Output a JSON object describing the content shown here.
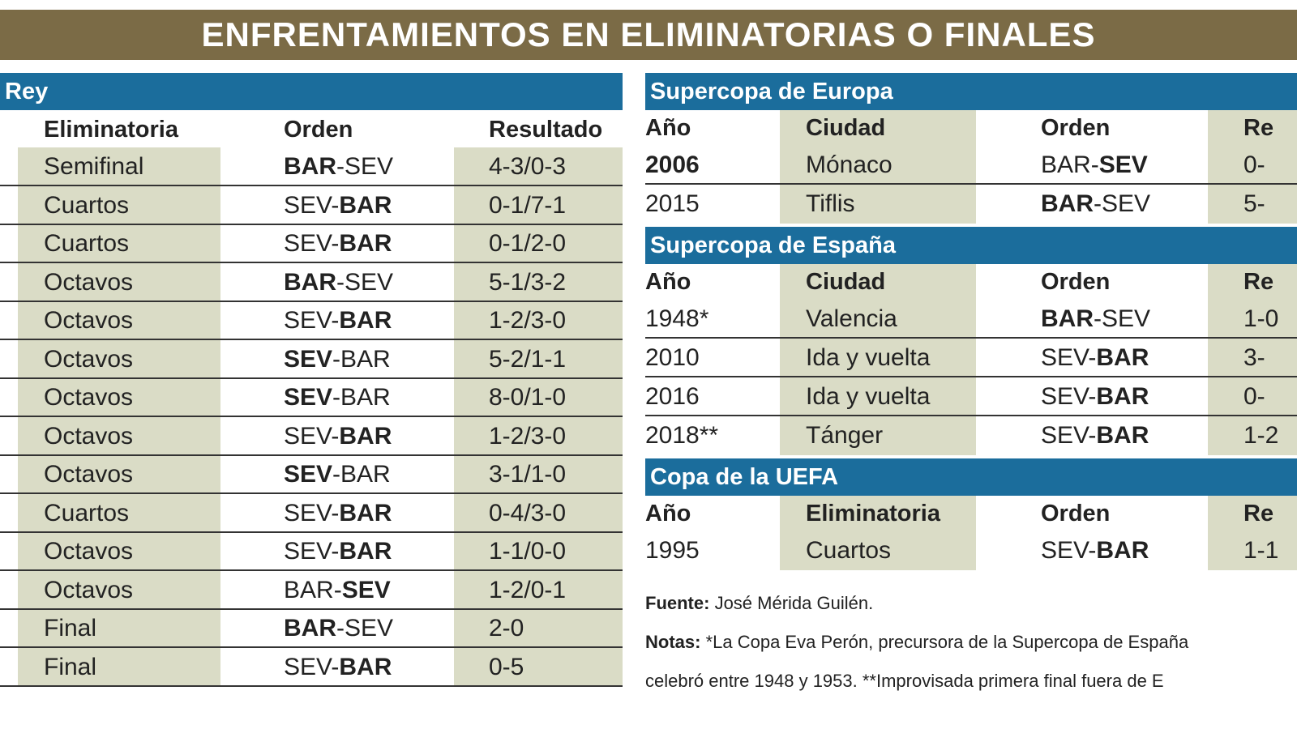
{
  "header": {
    "title": "ENFRENTAMIENTOS EN ELIMINATORIAS O FINALES"
  },
  "left": {
    "title": "Rey",
    "columns": [
      "Eliminatoria",
      "Orden",
      "Resultado"
    ],
    "rows": [
      {
        "cells": [
          "Semifinal",
          "BAR-SEV",
          "4-3/0-3"
        ],
        "orden_bold": 0
      },
      {
        "cells": [
          "Cuartos",
          "SEV-BAR",
          "0-1/7-1"
        ],
        "orden_bold": 1
      },
      {
        "cells": [
          "Cuartos",
          "SEV-BAR",
          "0-1/2-0"
        ],
        "orden_bold": 1
      },
      {
        "cells": [
          "Octavos",
          "BAR-SEV",
          "5-1/3-2"
        ],
        "orden_bold": 0
      },
      {
        "cells": [
          "Octavos",
          "SEV-BAR",
          "1-2/3-0"
        ],
        "orden_bold": 1
      },
      {
        "cells": [
          "Octavos",
          "SEV-BAR",
          "5-2/1-1"
        ],
        "orden_bold": 0
      },
      {
        "cells": [
          "Octavos",
          "SEV-BAR",
          "8-0/1-0"
        ],
        "orden_bold": 0
      },
      {
        "cells": [
          "Octavos",
          "SEV-BAR",
          "1-2/3-0"
        ],
        "orden_bold": 1
      },
      {
        "cells": [
          "Octavos",
          "SEV-BAR",
          "3-1/1-0"
        ],
        "orden_bold": 0
      },
      {
        "cells": [
          "Cuartos",
          "SEV-BAR",
          "0-4/3-0"
        ],
        "orden_bold": 1
      },
      {
        "cells": [
          "Octavos",
          "SEV-BAR",
          "1-1/0-0"
        ],
        "orden_bold": 1
      },
      {
        "cells": [
          "Octavos",
          "BAR-SEV",
          "1-2/0-1"
        ],
        "orden_bold": 1
      },
      {
        "cells": [
          "Final",
          "BAR-SEV",
          "2-0"
        ],
        "orden_bold": 0
      },
      {
        "cells": [
          "Final",
          "SEV-BAR",
          "0-5"
        ],
        "orden_bold": 1
      }
    ]
  },
  "right": {
    "sections": [
      {
        "title": "Supercopa de Europa",
        "columns": [
          "Año",
          "Ciudad",
          "Orden",
          "Re"
        ],
        "rows": [
          {
            "cells": [
              "2006",
              "Mónaco",
              "BAR-SEV",
              "0-"
            ],
            "orden_bold": 1,
            "year_bold": true
          },
          {
            "cells": [
              "2015",
              "Tiflis",
              "BAR-SEV",
              "5-"
            ],
            "orden_bold": 0
          }
        ]
      },
      {
        "title": "Supercopa de España",
        "columns": [
          "Año",
          "Ciudad",
          "Orden",
          "Re"
        ],
        "rows": [
          {
            "cells": [
              "1948*",
              "Valencia",
              "BAR-SEV",
              "1-0"
            ],
            "orden_bold": 0
          },
          {
            "cells": [
              "2010",
              "Ida y vuelta",
              "SEV-BAR",
              "3-"
            ],
            "orden_bold": 1
          },
          {
            "cells": [
              "2016",
              "Ida y vuelta",
              "SEV-BAR",
              "0-"
            ],
            "orden_bold": 1
          },
          {
            "cells": [
              "2018**",
              "Tánger",
              "SEV-BAR",
              "1-2"
            ],
            "orden_bold": 1
          }
        ]
      },
      {
        "title": "Copa de la UEFA",
        "columns": [
          "Año",
          "Eliminatoria",
          "Orden",
          "Re"
        ],
        "rows": [
          {
            "cells": [
              "1995",
              "Cuartos",
              "SEV-BAR",
              "1-1"
            ],
            "orden_bold": 1
          }
        ]
      }
    ],
    "notes": [
      {
        "label": "Fuente:",
        "text": " José Mérida Guilén."
      },
      {
        "label": "Notas:",
        "text": " *La Copa Eva Perón, precursora de la Supercopa de España"
      },
      {
        "label": null,
        "text": "celebró entre 1948 y 1953. **Improvisada primera final fuera de E"
      }
    ]
  }
}
